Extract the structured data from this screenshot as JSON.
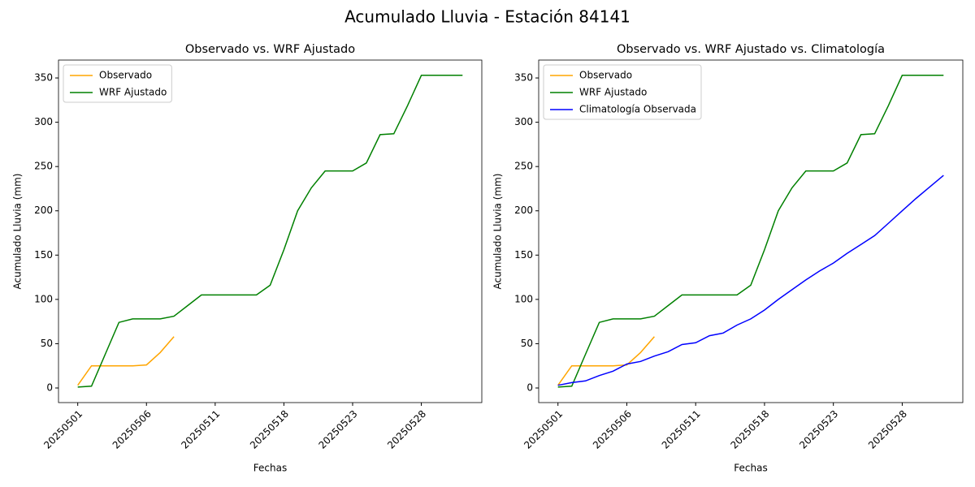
{
  "title": "Acumulado Lluvia - Estación 84141",
  "chart_data": [
    {
      "type": "line",
      "title": "Observado vs. WRF Ajustado",
      "x_label": "Fechas",
      "y_label": "Acumulado Lluvia (mm)",
      "categories": [
        "20250501",
        null,
        null,
        null,
        null,
        "20250506",
        null,
        null,
        null,
        null,
        "20250511",
        null,
        null,
        null,
        null,
        "20250518",
        null,
        null,
        null,
        null,
        "20250523",
        null,
        null,
        null,
        null,
        "20250528",
        null,
        null,
        null
      ],
      "series": [
        {
          "name": "Observado",
          "color": "orange",
          "values": [
            3,
            25,
            25,
            25,
            25,
            26,
            40,
            58,
            null,
            null,
            null,
            null,
            null,
            null,
            null,
            null,
            null,
            null,
            null,
            null,
            null,
            null,
            null,
            null,
            null,
            null,
            null,
            null,
            null
          ]
        },
        {
          "name": "WRF Ajustado",
          "color": "green",
          "values": [
            1,
            2,
            38,
            74,
            78,
            78,
            78,
            81,
            93,
            105,
            105,
            105,
            105,
            105,
            116,
            156,
            200,
            226,
            245,
            245,
            245,
            254,
            286,
            287,
            319,
            353,
            353,
            353,
            353
          ]
        }
      ],
      "ylim": [
        -16.5,
        370.2
      ],
      "yticks": [
        0,
        50,
        100,
        150,
        200,
        250,
        300,
        350
      ],
      "grid": false,
      "legend": "upper left"
    },
    {
      "type": "line",
      "title": "Observado vs. WRF Ajustado vs. Climatología",
      "x_label": "Fechas",
      "y_label": "Acumulado Lluvia (mm)",
      "categories": [
        "20250501",
        null,
        null,
        null,
        null,
        "20250506",
        null,
        null,
        null,
        null,
        "20250511",
        null,
        null,
        null,
        null,
        "20250518",
        null,
        null,
        null,
        null,
        "20250523",
        null,
        null,
        null,
        null,
        "20250528",
        null,
        null,
        null
      ],
      "series": [
        {
          "name": "Observado",
          "color": "orange",
          "values": [
            3,
            25,
            25,
            25,
            25,
            26,
            40,
            58,
            null,
            null,
            null,
            null,
            null,
            null,
            null,
            null,
            null,
            null,
            null,
            null,
            null,
            null,
            null,
            null,
            null,
            null,
            null,
            null,
            null
          ]
        },
        {
          "name": "WRF Ajustado",
          "color": "green",
          "values": [
            1,
            2,
            38,
            74,
            78,
            78,
            78,
            81,
            93,
            105,
            105,
            105,
            105,
            105,
            116,
            156,
            200,
            226,
            245,
            245,
            245,
            254,
            286,
            287,
            319,
            353,
            353,
            353,
            353
          ]
        },
        {
          "name": "Climatología Observada",
          "color": "blue",
          "values": [
            3,
            6,
            8,
            14,
            19,
            27,
            30,
            36,
            41,
            49,
            51,
            59,
            62,
            71,
            78,
            88,
            100,
            111,
            122,
            132,
            141,
            152,
            162,
            172,
            186,
            200,
            214,
            227,
            240
          ]
        }
      ],
      "ylim": [
        -16.5,
        370.2
      ],
      "yticks": [
        0,
        50,
        100,
        150,
        200,
        250,
        300,
        350
      ],
      "grid": false,
      "legend": "upper left"
    }
  ]
}
